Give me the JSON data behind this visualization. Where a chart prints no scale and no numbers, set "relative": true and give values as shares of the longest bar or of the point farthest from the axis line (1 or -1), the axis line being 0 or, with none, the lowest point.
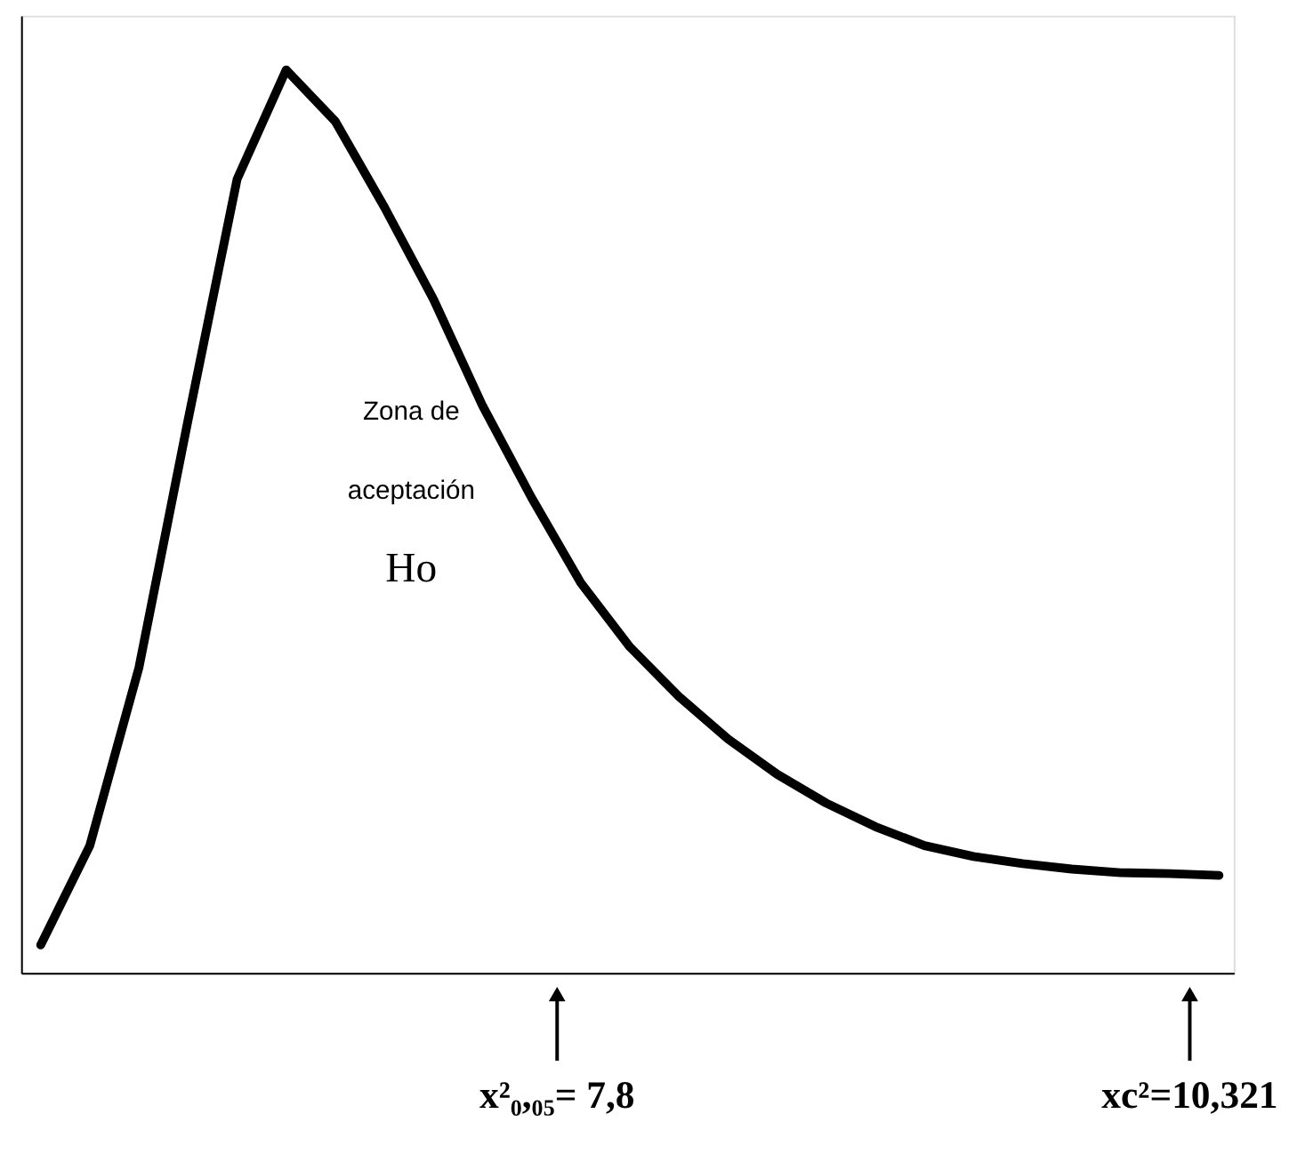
{
  "chart_data": {
    "type": "line",
    "relative": true,
    "categories": [
      null,
      null,
      null,
      null,
      null,
      null,
      null,
      null,
      null,
      null,
      null,
      null,
      null,
      null,
      null,
      null,
      null,
      null,
      null,
      null,
      null,
      null,
      null,
      null,
      null
    ],
    "series": [
      {
        "color": "#000000",
        "values": [
          0.031,
          0.141,
          0.338,
          0.612,
          0.879,
          1.0,
          0.943,
          0.848,
          0.746,
          0.628,
          0.526,
          0.432,
          0.361,
          0.306,
          0.259,
          0.22,
          0.188,
          0.162,
          0.141,
          0.129,
          0.121,
          0.115,
          0.111,
          0.11,
          0.108
        ]
      }
    ],
    "annotations": [
      "Zona de",
      "aceptación",
      "Ho",
      "x²₀,₀₅= 7,8",
      "xc²=10,321"
    ],
    "marker": "none",
    "line_style": "solid",
    "grid": false
  }
}
